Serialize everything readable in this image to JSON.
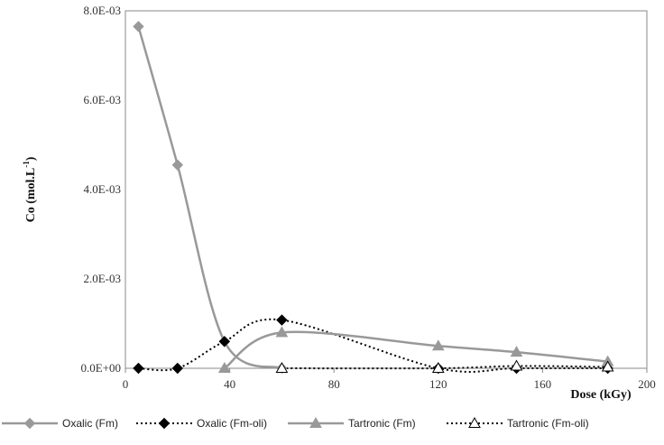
{
  "chart_data": {
    "type": "line",
    "title": "",
    "xlabel": "Dose (kGy)",
    "ylabel": "Co (mol.L-1)",
    "ylabel_main": "Co (mol.L",
    "ylabel_sup": "-1",
    "ylabel_close": ")",
    "xlim": [
      0,
      200
    ],
    "ylim": [
      0,
      0.008
    ],
    "x_ticks": [
      0,
      40,
      80,
      120,
      160,
      200
    ],
    "x_tick_labels": [
      "0",
      "40",
      "80",
      "120",
      "160",
      "200"
    ],
    "y_ticks": [
      0,
      0.002,
      0.004,
      0.006,
      0.008
    ],
    "y_tick_labels": [
      "0.0E+00",
      "2.0E-03",
      "4.0E-03",
      "6.0E-03",
      "8.0E-03"
    ],
    "grid": false,
    "legend_position": "bottom",
    "series": [
      {
        "name": "Oxalic (Fm)",
        "color": "#999999",
        "line_style": "solid",
        "marker": "diamond",
        "marker_fill": "#999999",
        "x": [
          5,
          20,
          38,
          60
        ],
        "y": [
          0.00765,
          0.00455,
          0.0006,
          0.0
        ]
      },
      {
        "name": "Oxalic (Fm-oli)",
        "color": "#000000",
        "line_style": "dotted",
        "marker": "diamond",
        "marker_fill": "#000000",
        "x": [
          5,
          20,
          38,
          60,
          120,
          150,
          185
        ],
        "y": [
          0.0,
          0.0,
          0.0006,
          0.00108,
          0.0,
          0.0,
          0.0
        ]
      },
      {
        "name": "Tartronic (Fm)",
        "color": "#999999",
        "line_style": "solid",
        "marker": "triangle",
        "marker_fill": "#999999",
        "x": [
          38,
          60,
          120,
          150,
          185
        ],
        "y": [
          0.0,
          0.0008,
          0.0005,
          0.00036,
          0.00015
        ]
      },
      {
        "name": "Tartronic (Fm-oli)",
        "color": "#000000",
        "line_style": "dotted",
        "marker": "triangle",
        "marker_fill": "#ffffff",
        "x": [
          60,
          120,
          150,
          185
        ],
        "y": [
          0.0,
          0.0,
          5e-05,
          3e-05
        ]
      }
    ]
  }
}
